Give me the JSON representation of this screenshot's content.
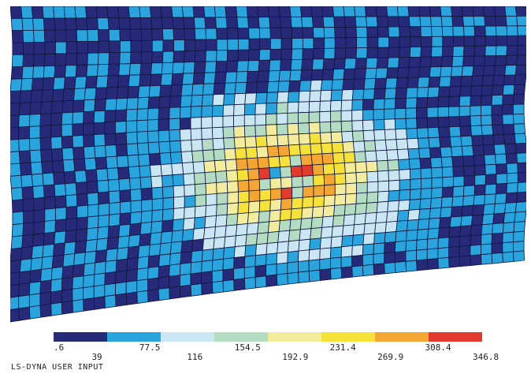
{
  "footer_label": "LS-DYNA USER INPUT",
  "colormap": {
    "colors": [
      "#272a78",
      "#29a4dd",
      "#c9e6f2",
      "#b4dcc2",
      "#f3ec9c",
      "#f6e23a",
      "#f4a634",
      "#e23b2e"
    ],
    "tick_labels": [
      ".6",
      "39",
      "77.5",
      "116",
      "154.5",
      "192.9",
      "231.4",
      "269.9",
      "308.4",
      "346.8"
    ]
  },
  "colors": {
    "background": "#ffffff",
    "mesh_line": "#0f1640",
    "mesh_base": "#25296e"
  }
}
